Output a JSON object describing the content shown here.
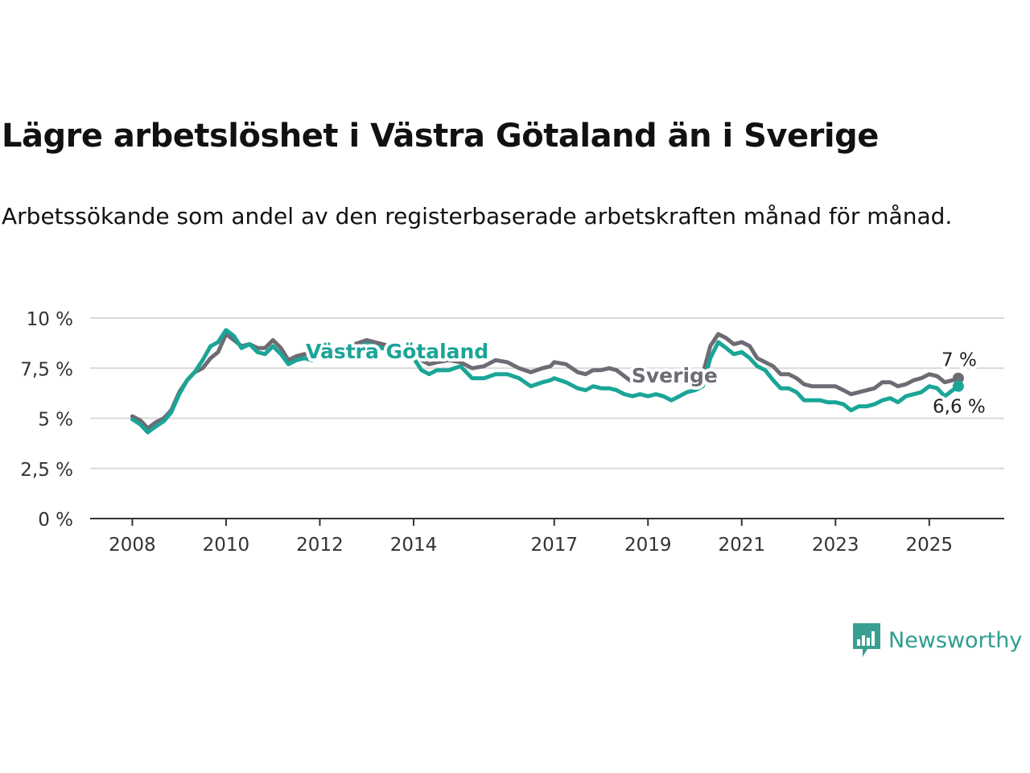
{
  "title": "Lägre arbetslöshet i Västra Götaland än i Sverige",
  "subtitle": "Arbetssökande som andel av den registerbaserade arbetskraften månad för månad.",
  "brand": {
    "name": "Newsworthy",
    "icon": "newsworthy-logo-icon",
    "color": "#3a9e92"
  },
  "colors": {
    "sverige": "#6d6b73",
    "vg": "#1aa597",
    "grid": "#d9d9d9",
    "axis": "#333333"
  },
  "chart_data": {
    "type": "line",
    "title": "Lägre arbetslöshet i Västra Götaland än i Sverige",
    "subtitle": "Arbetssökande som andel av den registerbaserade arbetskraften månad för månad.",
    "xlabel": "",
    "ylabel": "",
    "ylim": [
      0,
      10
    ],
    "xlim": [
      2007.1,
      2026.6
    ],
    "grid": true,
    "y_ticks": [
      {
        "value": 0,
        "label": "0 %"
      },
      {
        "value": 2.5,
        "label": "2,5 %"
      },
      {
        "value": 5,
        "label": "5 %"
      },
      {
        "value": 7.5,
        "label": "7,5 %"
      },
      {
        "value": 10,
        "label": "10 %"
      }
    ],
    "x_ticks": [
      {
        "value": 2008,
        "label": "2008"
      },
      {
        "value": 2010,
        "label": "2010"
      },
      {
        "value": 2012,
        "label": "2012"
      },
      {
        "value": 2014,
        "label": "2014"
      },
      {
        "value": 2017,
        "label": "2017"
      },
      {
        "value": 2019,
        "label": "2019"
      },
      {
        "value": 2021,
        "label": "2021"
      },
      {
        "value": 2023,
        "label": "2023"
      },
      {
        "value": 2025,
        "label": "2025"
      }
    ],
    "series": [
      {
        "name": "Sverige",
        "color": "#6d6b73",
        "end_label": "7 %",
        "points": [
          [
            2008.0,
            5.1
          ],
          [
            2008.17,
            4.9
          ],
          [
            2008.33,
            4.5
          ],
          [
            2008.5,
            4.8
          ],
          [
            2008.67,
            5.0
          ],
          [
            2008.83,
            5.4
          ],
          [
            2009.0,
            6.3
          ],
          [
            2009.17,
            6.9
          ],
          [
            2009.33,
            7.3
          ],
          [
            2009.5,
            7.5
          ],
          [
            2009.67,
            8.0
          ],
          [
            2009.83,
            8.3
          ],
          [
            2010.0,
            9.2
          ],
          [
            2010.17,
            8.9
          ],
          [
            2010.33,
            8.6
          ],
          [
            2010.5,
            8.7
          ],
          [
            2010.67,
            8.5
          ],
          [
            2010.83,
            8.5
          ],
          [
            2011.0,
            8.9
          ],
          [
            2011.17,
            8.5
          ],
          [
            2011.33,
            7.9
          ],
          [
            2011.5,
            8.1
          ],
          [
            2011.67,
            8.2
          ],
          [
            2011.83,
            8.2
          ],
          [
            2012.0,
            8.3
          ],
          [
            2012.5,
            8.5
          ],
          [
            2013.0,
            8.9
          ],
          [
            2013.5,
            8.6
          ],
          [
            2014.0,
            8.3
          ],
          [
            2014.17,
            7.9
          ],
          [
            2014.33,
            7.7
          ],
          [
            2014.5,
            7.8
          ],
          [
            2014.75,
            7.9
          ],
          [
            2015.0,
            7.8
          ],
          [
            2015.25,
            7.5
          ],
          [
            2015.5,
            7.6
          ],
          [
            2015.75,
            7.9
          ],
          [
            2016.0,
            7.8
          ],
          [
            2016.25,
            7.5
          ],
          [
            2016.5,
            7.3
          ],
          [
            2016.75,
            7.5
          ],
          [
            2016.92,
            7.6
          ],
          [
            2017.0,
            7.8
          ],
          [
            2017.25,
            7.7
          ],
          [
            2017.5,
            7.3
          ],
          [
            2017.67,
            7.2
          ],
          [
            2017.83,
            7.4
          ],
          [
            2018.0,
            7.4
          ],
          [
            2018.17,
            7.5
          ],
          [
            2018.33,
            7.4
          ],
          [
            2018.5,
            7.1
          ],
          [
            2018.67,
            6.8
          ],
          [
            2018.83,
            6.9
          ],
          [
            2019.0,
            6.9
          ],
          [
            2019.17,
            7.0
          ],
          [
            2019.33,
            6.9
          ],
          [
            2019.5,
            6.8
          ],
          [
            2019.67,
            6.8
          ],
          [
            2019.83,
            6.9
          ],
          [
            2020.0,
            7.0
          ],
          [
            2020.17,
            7.2
          ],
          [
            2020.33,
            8.6
          ],
          [
            2020.5,
            9.2
          ],
          [
            2020.67,
            9.0
          ],
          [
            2020.83,
            8.7
          ],
          [
            2021.0,
            8.8
          ],
          [
            2021.17,
            8.6
          ],
          [
            2021.33,
            8.0
          ],
          [
            2021.5,
            7.8
          ],
          [
            2021.67,
            7.6
          ],
          [
            2021.83,
            7.2
          ],
          [
            2022.0,
            7.2
          ],
          [
            2022.17,
            7.0
          ],
          [
            2022.33,
            6.7
          ],
          [
            2022.5,
            6.6
          ],
          [
            2022.67,
            6.6
          ],
          [
            2022.83,
            6.6
          ],
          [
            2023.0,
            6.6
          ],
          [
            2023.17,
            6.4
          ],
          [
            2023.33,
            6.2
          ],
          [
            2023.5,
            6.3
          ],
          [
            2023.67,
            6.4
          ],
          [
            2023.83,
            6.5
          ],
          [
            2024.0,
            6.8
          ],
          [
            2024.17,
            6.8
          ],
          [
            2024.33,
            6.6
          ],
          [
            2024.5,
            6.7
          ],
          [
            2024.67,
            6.9
          ],
          [
            2024.83,
            7.0
          ],
          [
            2025.0,
            7.2
          ],
          [
            2025.17,
            7.1
          ],
          [
            2025.33,
            6.8
          ],
          [
            2025.5,
            6.9
          ],
          [
            2025.62,
            7.0
          ]
        ]
      },
      {
        "name": "Västra Götaland",
        "color": "#1aa597",
        "end_label": "6,6 %",
        "points": [
          [
            2008.0,
            4.95
          ],
          [
            2008.17,
            4.7
          ],
          [
            2008.33,
            4.3
          ],
          [
            2008.5,
            4.6
          ],
          [
            2008.67,
            4.85
          ],
          [
            2008.83,
            5.3
          ],
          [
            2009.0,
            6.2
          ],
          [
            2009.17,
            6.9
          ],
          [
            2009.33,
            7.3
          ],
          [
            2009.5,
            7.9
          ],
          [
            2009.67,
            8.6
          ],
          [
            2009.83,
            8.8
          ],
          [
            2010.0,
            9.4
          ],
          [
            2010.17,
            9.1
          ],
          [
            2010.33,
            8.5
          ],
          [
            2010.5,
            8.7
          ],
          [
            2010.67,
            8.3
          ],
          [
            2010.83,
            8.2
          ],
          [
            2011.0,
            8.6
          ],
          [
            2011.17,
            8.2
          ],
          [
            2011.33,
            7.7
          ],
          [
            2011.5,
            7.9
          ],
          [
            2011.67,
            8.0
          ],
          [
            2011.83,
            7.9
          ],
          [
            2012.0,
            8.1
          ],
          [
            2012.5,
            8.3
          ],
          [
            2013.0,
            8.7
          ],
          [
            2013.5,
            8.4
          ],
          [
            2014.0,
            8.0
          ],
          [
            2014.17,
            7.4
          ],
          [
            2014.33,
            7.2
          ],
          [
            2014.5,
            7.4
          ],
          [
            2014.75,
            7.4
          ],
          [
            2015.0,
            7.6
          ],
          [
            2015.25,
            7.0
          ],
          [
            2015.5,
            7.0
          ],
          [
            2015.75,
            7.2
          ],
          [
            2016.0,
            7.2
          ],
          [
            2016.25,
            7.0
          ],
          [
            2016.5,
            6.6
          ],
          [
            2016.75,
            6.8
          ],
          [
            2016.92,
            6.9
          ],
          [
            2017.0,
            7.0
          ],
          [
            2017.25,
            6.8
          ],
          [
            2017.5,
            6.5
          ],
          [
            2017.67,
            6.4
          ],
          [
            2017.83,
            6.6
          ],
          [
            2018.0,
            6.5
          ],
          [
            2018.17,
            6.5
          ],
          [
            2018.33,
            6.4
          ],
          [
            2018.5,
            6.2
          ],
          [
            2018.67,
            6.1
          ],
          [
            2018.83,
            6.2
          ],
          [
            2019.0,
            6.1
          ],
          [
            2019.17,
            6.2
          ],
          [
            2019.33,
            6.1
          ],
          [
            2019.5,
            5.9
          ],
          [
            2019.67,
            6.1
          ],
          [
            2019.83,
            6.3
          ],
          [
            2020.0,
            6.4
          ],
          [
            2020.17,
            6.6
          ],
          [
            2020.33,
            8.0
          ],
          [
            2020.5,
            8.8
          ],
          [
            2020.67,
            8.5
          ],
          [
            2020.83,
            8.2
          ],
          [
            2021.0,
            8.3
          ],
          [
            2021.17,
            8.0
          ],
          [
            2021.33,
            7.6
          ],
          [
            2021.5,
            7.4
          ],
          [
            2021.67,
            6.9
          ],
          [
            2021.83,
            6.5
          ],
          [
            2022.0,
            6.5
          ],
          [
            2022.17,
            6.3
          ],
          [
            2022.33,
            5.9
          ],
          [
            2022.5,
            5.9
          ],
          [
            2022.67,
            5.9
          ],
          [
            2022.83,
            5.8
          ],
          [
            2023.0,
            5.8
          ],
          [
            2023.17,
            5.7
          ],
          [
            2023.33,
            5.4
          ],
          [
            2023.5,
            5.6
          ],
          [
            2023.67,
            5.6
          ],
          [
            2023.83,
            5.7
          ],
          [
            2024.0,
            5.9
          ],
          [
            2024.17,
            6.0
          ],
          [
            2024.33,
            5.8
          ],
          [
            2024.5,
            6.1
          ],
          [
            2024.67,
            6.2
          ],
          [
            2024.83,
            6.3
          ],
          [
            2025.0,
            6.6
          ],
          [
            2025.17,
            6.5
          ],
          [
            2025.33,
            6.1
          ],
          [
            2025.5,
            6.4
          ],
          [
            2025.62,
            6.6
          ]
        ]
      }
    ]
  }
}
